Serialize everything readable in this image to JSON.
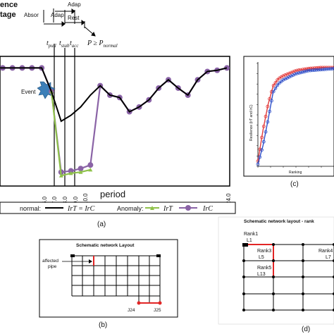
{
  "panel_a": {
    "stage_title": "ence",
    "stage_title_2": "tage",
    "phases": {
      "absorb": "Absor",
      "adapt": "Adap",
      "adapt_upper": "Adap",
      "restore": "Rest"
    },
    "condition": "P ≥ P",
    "condition_sub": "normal",
    "times": {
      "pull": "t",
      "pull_sub": "pull",
      "stab": "t",
      "stab_sub": "stab",
      "acc": "t",
      "acc_sub": "acc"
    },
    "event_label": "Event",
    "xlabel": "period",
    "x_ticks": [
      "6.0",
      "7.0",
      "8.0",
      "9.0",
      "10.0",
      "24.0"
    ],
    "legend": {
      "normal": "normal:",
      "normal_expr": "IrT = IrC",
      "anomaly": "Anomaly:",
      "irt": "IrT",
      "irc": "IrC"
    },
    "caption": "(a)"
  },
  "panel_b": {
    "title": "Schematic network Layout",
    "affected_label_1": "affected",
    "affected_label_2": "pipe",
    "node_j24": "J24",
    "node_j25": "J25",
    "caption": "(b)"
  },
  "panel_c": {
    "ylabel": "Resilience (IrT and IrC)",
    "xlabel": "Ranking",
    "caption": "(c)"
  },
  "panel_d": {
    "title": "Schematic network layout - rank",
    "rank1": "Rank1",
    "l1": "L1",
    "rank3": "Rank3",
    "l5": "L5",
    "rank5": "Rank5",
    "l13": "L13",
    "rank4": "Rank4",
    "l7": "L7",
    "caption": "(d)"
  },
  "chart_data": [
    {
      "type": "line",
      "panel": "a",
      "xlabel": "period",
      "x_ticks": [
        "6.0",
        "7.0",
        "8.0",
        "9.0",
        "10.0",
        "24.0"
      ],
      "series": [
        {
          "name": "IrT = IrC",
          "color": "#000000",
          "x": [
            0,
            1,
            2,
            3,
            4,
            5,
            6,
            7,
            8,
            9,
            10,
            11,
            12,
            13,
            14,
            15,
            16,
            17,
            18,
            19,
            20,
            21,
            22,
            23,
            24
          ],
          "y": [
            0.95,
            0.95,
            0.95,
            0.95,
            0.95,
            0.95,
            0.75,
            0.5,
            0.55,
            0.62,
            0.72,
            0.8,
            0.72,
            0.7,
            0.58,
            0.62,
            0.68,
            0.78,
            0.85,
            0.78,
            0.72,
            0.85,
            0.92,
            0.93,
            0.95
          ]
        },
        {
          "name": "IrT",
          "color": "#8fc24a",
          "x": [
            6,
            7,
            8,
            9,
            10
          ],
          "y": [
            0.75,
            0.04,
            0.06,
            0.07,
            0.09
          ]
        },
        {
          "name": "IrC",
          "color": "#8a63a6",
          "x": [
            0,
            1,
            2,
            3,
            4,
            5,
            6,
            7,
            8,
            9,
            10,
            11,
            12,
            13,
            14,
            15,
            16,
            17,
            18,
            19,
            20,
            21,
            22,
            23,
            24
          ],
          "y": [
            0.95,
            0.95,
            0.95,
            0.95,
            0.95,
            0.95,
            0.75,
            0.07,
            0.08,
            0.1,
            0.13,
            0.8,
            0.72,
            0.7,
            0.58,
            0.62,
            0.68,
            0.78,
            0.85,
            0.78,
            0.72,
            0.85,
            0.92,
            0.93,
            0.95
          ]
        }
      ]
    },
    {
      "type": "line",
      "panel": "c",
      "xlabel": "Ranking",
      "ylabel": "Resilience (IrT and IrC)",
      "series": [
        {
          "color": "#e23b3b",
          "x": [
            0,
            2,
            4,
            6,
            8,
            10,
            15,
            20,
            25,
            30
          ],
          "y": [
            0.05,
            0.35,
            0.6,
            0.78,
            0.85,
            0.88,
            0.93,
            0.95,
            0.96,
            0.96
          ]
        },
        {
          "color": "#2f4fc8",
          "x": [
            0,
            2,
            4,
            6,
            8,
            10,
            15,
            20,
            25,
            30
          ],
          "y": [
            0.02,
            0.2,
            0.45,
            0.72,
            0.8,
            0.84,
            0.9,
            0.93,
            0.94,
            0.95
          ]
        }
      ]
    }
  ],
  "colors": {
    "normal": "#000000",
    "irt": "#8fc24a",
    "irc": "#8a63a6",
    "event": "#3d7fb8",
    "red_series": "#e23b3b",
    "blue_series": "#2f4fc8",
    "highlight": "#e22525"
  }
}
